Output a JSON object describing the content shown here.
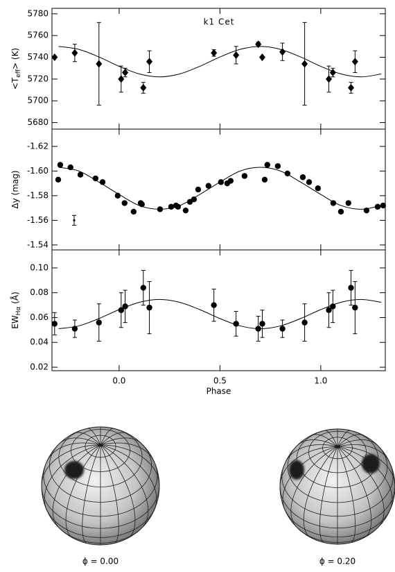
{
  "chart_data": [
    {
      "type": "scatter",
      "title": "k1 Cet",
      "y_label": "<T",
      "y_label_sub": "eff",
      "y_label_end": "> (K)",
      "marker": "diamond",
      "color": "#000000",
      "xlim": [
        -0.333,
        1.32
      ],
      "xticks": [
        0,
        0.5,
        1
      ],
      "ylim": [
        5674,
        5785
      ],
      "yticks": [
        5680,
        5700,
        5720,
        5740,
        5760,
        5780
      ],
      "x": [
        -0.32,
        -0.22,
        -0.1,
        0.01,
        0.03,
        0.12,
        0.15,
        0.47,
        0.58,
        0.69,
        0.71,
        0.81,
        0.92,
        1.04,
        1.06,
        1.15,
        1.17
      ],
      "values": [
        5740,
        5744,
        5734,
        5720,
        5726,
        5712,
        5736,
        5744,
        5742,
        5752,
        5740,
        5745,
        5734,
        5720,
        5726,
        5712,
        5736
      ],
      "errors": [
        0,
        8,
        38,
        12,
        4,
        5,
        10,
        3,
        8,
        2,
        0,
        8,
        38,
        12,
        4,
        5,
        10
      ],
      "model_x": [
        -0.3,
        -0.2,
        -0.1,
        0,
        0.1,
        0.2,
        0.3,
        0.4,
        0.5,
        0.6,
        0.7,
        0.8,
        0.9,
        1,
        1.1,
        1.2,
        1.3
      ],
      "model_values": [
        5750,
        5747.3,
        5740.3,
        5731.7,
        5724.7,
        5722,
        5724.7,
        5731.7,
        5740.3,
        5747.3,
        5750,
        5747.3,
        5740.3,
        5731.7,
        5724.7,
        5722,
        5724.7
      ]
    },
    {
      "type": "scatter",
      "y_label": "Δy (mag)",
      "marker": "circle",
      "color": "#000000",
      "xlim": [
        -0.333,
        1.32
      ],
      "xticks": [
        0,
        0.5,
        1
      ],
      "ylim": [
        -1.536,
        -1.634
      ],
      "yticks": [
        -1.62,
        {
          "value": -1.6,
          "label": "-1.60"
        },
        -1.58,
        -1.56,
        -1.54
      ],
      "x": [
        -0.302,
        -0.292,
        -0.241,
        -0.192,
        -0.117,
        -0.082,
        -0.007,
        0.027,
        0.072,
        0.107,
        0.113,
        0.203,
        0.258,
        0.282,
        0.292,
        0.33,
        0.351,
        0.371,
        0.392,
        0.443,
        0.505,
        0.536,
        0.553,
        0.622,
        0.722,
        0.735,
        0.787,
        0.835,
        0.911,
        0.942,
        0.986,
        1.062,
        1.1,
        1.137,
        1.227,
        1.282,
        1.309
      ],
      "values": [
        -1.593,
        -1.605,
        -1.603,
        -1.597,
        -1.594,
        -1.591,
        -1.58,
        -1.574,
        -1.567,
        -1.574,
        -1.573,
        -1.569,
        -1.571,
        -1.572,
        -1.571,
        -1.568,
        -1.575,
        -1.577,
        -1.585,
        -1.588,
        -1.591,
        -1.59,
        -1.592,
        -1.596,
        -1.593,
        -1.605,
        -1.604,
        -1.598,
        -1.595,
        -1.591,
        -1.586,
        -1.574,
        -1.567,
        -1.574,
        -1.568,
        -1.571,
        -1.572
      ],
      "sample_error": {
        "x": -0.223,
        "value": -1.56,
        "error": 0.004
      },
      "model_x": [
        -0.3,
        -0.2,
        -0.1,
        0,
        0.1,
        0.2,
        0.3,
        0.4,
        0.5,
        0.6,
        0.7,
        0.8,
        0.9,
        1,
        1.1,
        1.2,
        1.3
      ],
      "model_values": [
        -1.603,
        -1.6,
        -1.591,
        -1.581,
        -1.572,
        -1.569,
        -1.572,
        -1.581,
        -1.591,
        -1.6,
        -1.603,
        -1.6,
        -1.591,
        -1.581,
        -1.572,
        -1.569,
        -1.572
      ]
    },
    {
      "type": "scatter",
      "y_label": "EW",
      "y_label_sub": "Hα",
      "y_label_end": " (Å)",
      "x_label": "Phase",
      "marker": "circle",
      "color": "#000000",
      "show_x_tick_labels": true,
      "xlim": [
        -0.333,
        1.32
      ],
      "xticks": [
        {
          "value": 0,
          "label": "0.0"
        },
        0.5,
        {
          "value": 1,
          "label": "1.0"
        }
      ],
      "ylim": [
        0.0172,
        0.1145
      ],
      "yticks": [
        0.02,
        0.04,
        0.06,
        0.08,
        {
          "value": 0.1,
          "label": "0.10"
        }
      ],
      "x": [
        -0.32,
        -0.22,
        -0.1,
        0.01,
        0.03,
        0.12,
        0.15,
        0.47,
        0.58,
        0.69,
        0.71,
        0.81,
        0.92,
        1.04,
        1.06,
        1.15,
        1.17
      ],
      "values": [
        0.055,
        0.051,
        0.056,
        0.066,
        0.069,
        0.084,
        0.068,
        0.07,
        0.055,
        0.051,
        0.055,
        0.051,
        0.056,
        0.066,
        0.069,
        0.084,
        0.068
      ],
      "errors": [
        0.009,
        0.007,
        0.015,
        0.014,
        0.013,
        0.014,
        0.021,
        0.013,
        0.01,
        0.01,
        0.011,
        0.007,
        0.015,
        0.014,
        0.013,
        0.014,
        0.021
      ],
      "model_x": [
        -0.3,
        -0.2,
        -0.1,
        0,
        0.1,
        0.2,
        0.3,
        0.4,
        0.5,
        0.6,
        0.7,
        0.8,
        0.9,
        1,
        1.1,
        1.2,
        1.3
      ],
      "model_values": [
        0.051,
        0.0533,
        0.0592,
        0.0664,
        0.0723,
        0.0746,
        0.0723,
        0.0664,
        0.0592,
        0.0533,
        0.051,
        0.0533,
        0.0592,
        0.0664,
        0.0723,
        0.0746,
        0.0723
      ]
    }
  ],
  "surface_maps": [
    {
      "label": "ϕ = 0.00"
    },
    {
      "label": "ϕ = 0.20"
    }
  ]
}
